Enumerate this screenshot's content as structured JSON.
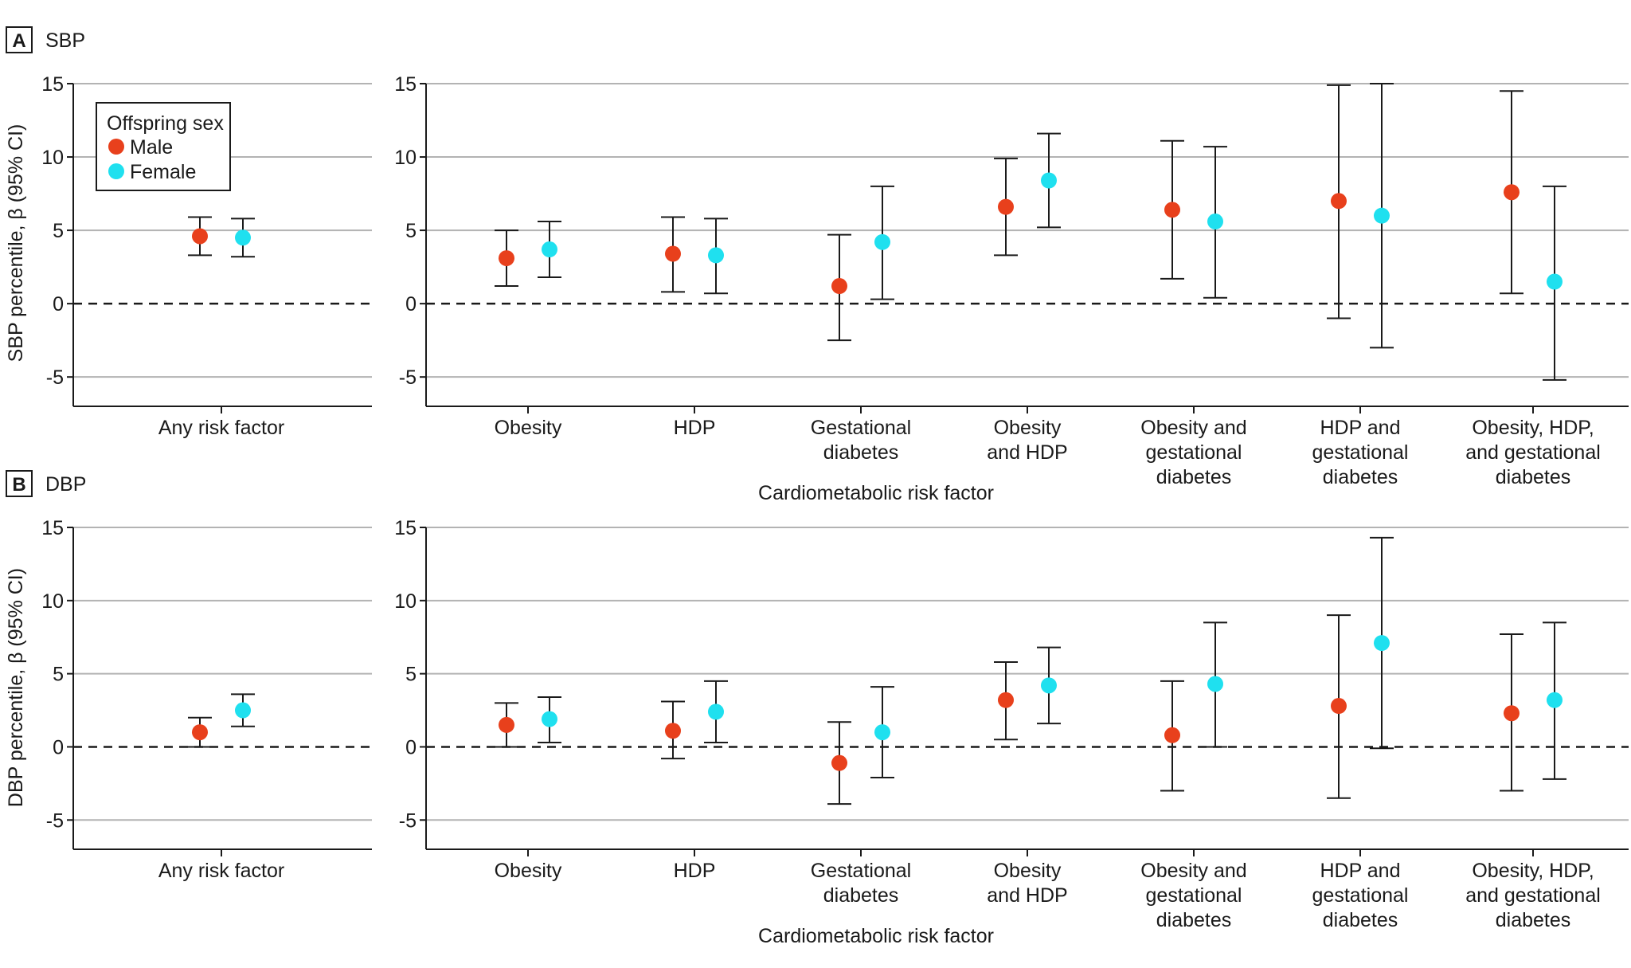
{
  "chart_data": [
    {
      "panel": "A",
      "title": "SBP",
      "type": "scatter",
      "ylabel": "SBP percentile, β (95% CI)",
      "xlabel": "Cardiometabolic risk factor",
      "ylim": [
        -7,
        15
      ],
      "yticks": [
        "15",
        "10",
        "5",
        "0",
        "-5"
      ],
      "legend": {
        "title": "Offspring sex",
        "location": "top-left",
        "items": [
          {
            "name": "Male",
            "color": "#e8401c"
          },
          {
            "name": "Female",
            "color": "#1fe0ef"
          }
        ]
      },
      "left_categories": [
        {
          "label": [
            "Any risk factor"
          ],
          "male": {
            "value": 4.6,
            "low": 3.3,
            "high": 5.9
          },
          "female": {
            "value": 4.5,
            "low": 3.2,
            "high": 5.8
          }
        }
      ],
      "right_categories": [
        {
          "label": [
            "Obesity"
          ],
          "male": {
            "value": 3.1,
            "low": 1.2,
            "high": 5.0
          },
          "female": {
            "value": 3.7,
            "low": 1.8,
            "high": 5.6
          }
        },
        {
          "label": [
            "HDP"
          ],
          "male": {
            "value": 3.4,
            "low": 0.8,
            "high": 5.9
          },
          "female": {
            "value": 3.3,
            "low": 0.7,
            "high": 5.8
          }
        },
        {
          "label": [
            "Gestational",
            "diabetes"
          ],
          "male": {
            "value": 1.2,
            "low": -2.5,
            "high": 4.7
          },
          "female": {
            "value": 4.2,
            "low": 0.3,
            "high": 8.0
          }
        },
        {
          "label": [
            "Obesity",
            "and HDP"
          ],
          "male": {
            "value": 6.6,
            "low": 3.3,
            "high": 9.9
          },
          "female": {
            "value": 8.4,
            "low": 5.2,
            "high": 11.6
          }
        },
        {
          "label": [
            "Obesity and",
            "gestational",
            "diabetes"
          ],
          "male": {
            "value": 6.4,
            "low": 1.7,
            "high": 11.1
          },
          "female": {
            "value": 5.6,
            "low": 0.4,
            "high": 10.7
          }
        },
        {
          "label": [
            "HDP and",
            "gestational",
            "diabetes"
          ],
          "male": {
            "value": 7.0,
            "low": -1.0,
            "high": 14.9
          },
          "female": {
            "value": 6.0,
            "low": -3.0,
            "high": 15.0
          }
        },
        {
          "label": [
            "Obesity, HDP,",
            "and gestational",
            "diabetes"
          ],
          "male": {
            "value": 7.6,
            "low": 0.7,
            "high": 14.5
          },
          "female": {
            "value": 1.5,
            "low": -5.2,
            "high": 8.0
          }
        }
      ]
    },
    {
      "panel": "B",
      "title": "DBP",
      "type": "scatter",
      "ylabel": "DBP percentile, β (95% CI)",
      "xlabel": "Cardiometabolic risk factor",
      "ylim": [
        -7,
        15
      ],
      "yticks": [
        "15",
        "10",
        "5",
        "0",
        "-5"
      ],
      "left_categories": [
        {
          "label": [
            "Any risk factor"
          ],
          "male": {
            "value": 1.0,
            "low": 0.0,
            "high": 2.0
          },
          "female": {
            "value": 2.5,
            "low": 1.4,
            "high": 3.6
          }
        }
      ],
      "right_categories": [
        {
          "label": [
            "Obesity"
          ],
          "male": {
            "value": 1.5,
            "low": 0.0,
            "high": 3.0
          },
          "female": {
            "value": 1.9,
            "low": 0.3,
            "high": 3.4
          }
        },
        {
          "label": [
            "HDP"
          ],
          "male": {
            "value": 1.1,
            "low": -0.8,
            "high": 3.1
          },
          "female": {
            "value": 2.4,
            "low": 0.3,
            "high": 4.5
          }
        },
        {
          "label": [
            "Gestational",
            "diabetes"
          ],
          "male": {
            "value": -1.1,
            "low": -3.9,
            "high": 1.7
          },
          "female": {
            "value": 1.0,
            "low": -2.1,
            "high": 4.1
          }
        },
        {
          "label": [
            "Obesity",
            "and HDP"
          ],
          "male": {
            "value": 3.2,
            "low": 0.5,
            "high": 5.8
          },
          "female": {
            "value": 4.2,
            "low": 1.6,
            "high": 6.8
          }
        },
        {
          "label": [
            "Obesity and",
            "gestational",
            "diabetes"
          ],
          "male": {
            "value": 0.8,
            "low": -3.0,
            "high": 4.5
          },
          "female": {
            "value": 4.3,
            "low": 0.0,
            "high": 8.5
          }
        },
        {
          "label": [
            "HDP and",
            "gestational",
            "diabetes"
          ],
          "male": {
            "value": 2.8,
            "low": -3.5,
            "high": 9.0
          },
          "female": {
            "value": 7.1,
            "low": -0.1,
            "high": 14.3
          }
        },
        {
          "label": [
            "Obesity, HDP,",
            "and gestational",
            "diabetes"
          ],
          "male": {
            "value": 2.3,
            "low": -3.0,
            "high": 7.7
          },
          "female": {
            "value": 3.2,
            "low": -2.2,
            "high": 8.5
          }
        }
      ]
    }
  ]
}
